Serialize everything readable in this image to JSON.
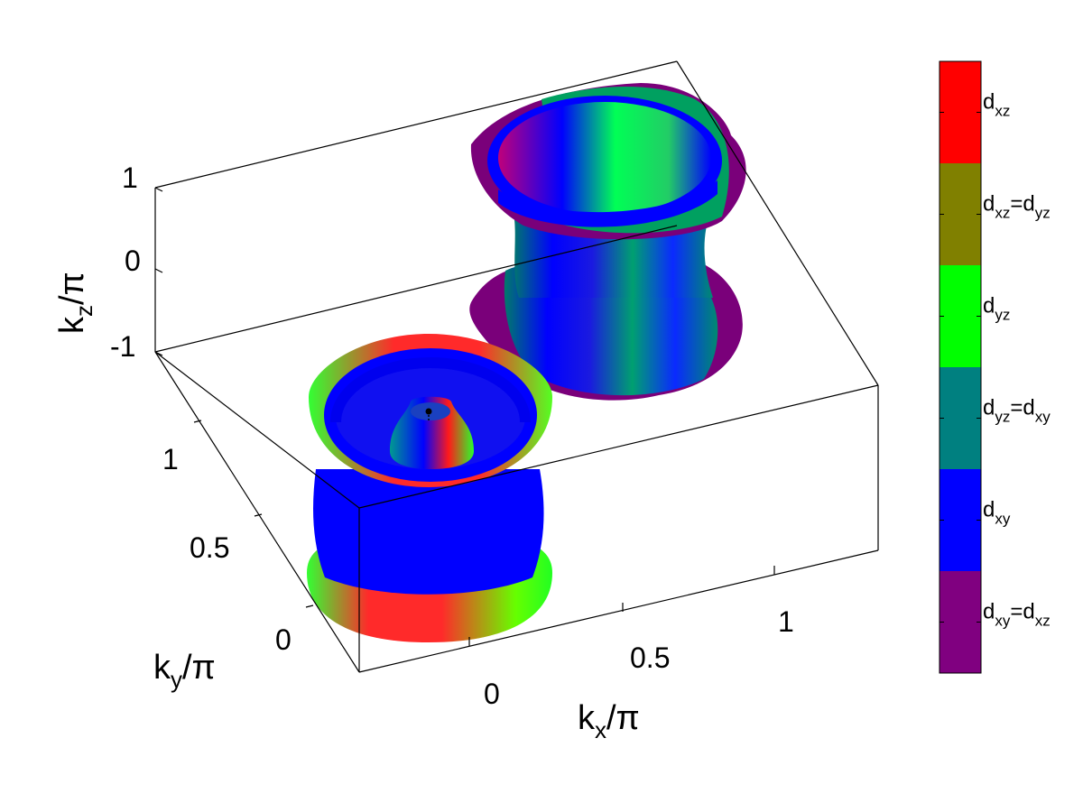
{
  "chart_data": {
    "type": "surface3d",
    "axes": {
      "x": {
        "label": "k",
        "label_sub": "x",
        "label_unit": "/π",
        "ticks": [
          "0",
          "0.5",
          "1"
        ]
      },
      "y": {
        "label": "k",
        "label_sub": "y",
        "label_unit": "/π",
        "ticks": [
          "0",
          "0.5",
          "1"
        ]
      },
      "z": {
        "label": "k",
        "label_sub": "z",
        "label_unit": "/π",
        "ticks": [
          "-1",
          "0",
          "1"
        ]
      }
    },
    "colorbar": {
      "entries": [
        {
          "main": "d",
          "sub": "xz",
          "color": "#ff0000"
        },
        {
          "main": "d",
          "sub": "xz",
          "eq": "=d",
          "sub2": "yz",
          "color": "#808000"
        },
        {
          "main": "d",
          "sub": "yz",
          "color": "#00ff00"
        },
        {
          "main": "d",
          "sub": "yz",
          "eq": "=d",
          "sub2": "xy",
          "color": "#008080"
        },
        {
          "main": "d",
          "sub": "xy",
          "color": "#0000ff"
        },
        {
          "main": "d",
          "sub": "xy",
          "eq": "=d",
          "sub2": "xz",
          "color": "#800080"
        }
      ]
    },
    "colors": {
      "dxz": "#ff0000",
      "dyz": "#00ff00",
      "dxy": "#0000ff",
      "dxz_dyz": "#808000",
      "dyz_dxy": "#008080",
      "dxy_dxz": "#800080"
    }
  }
}
